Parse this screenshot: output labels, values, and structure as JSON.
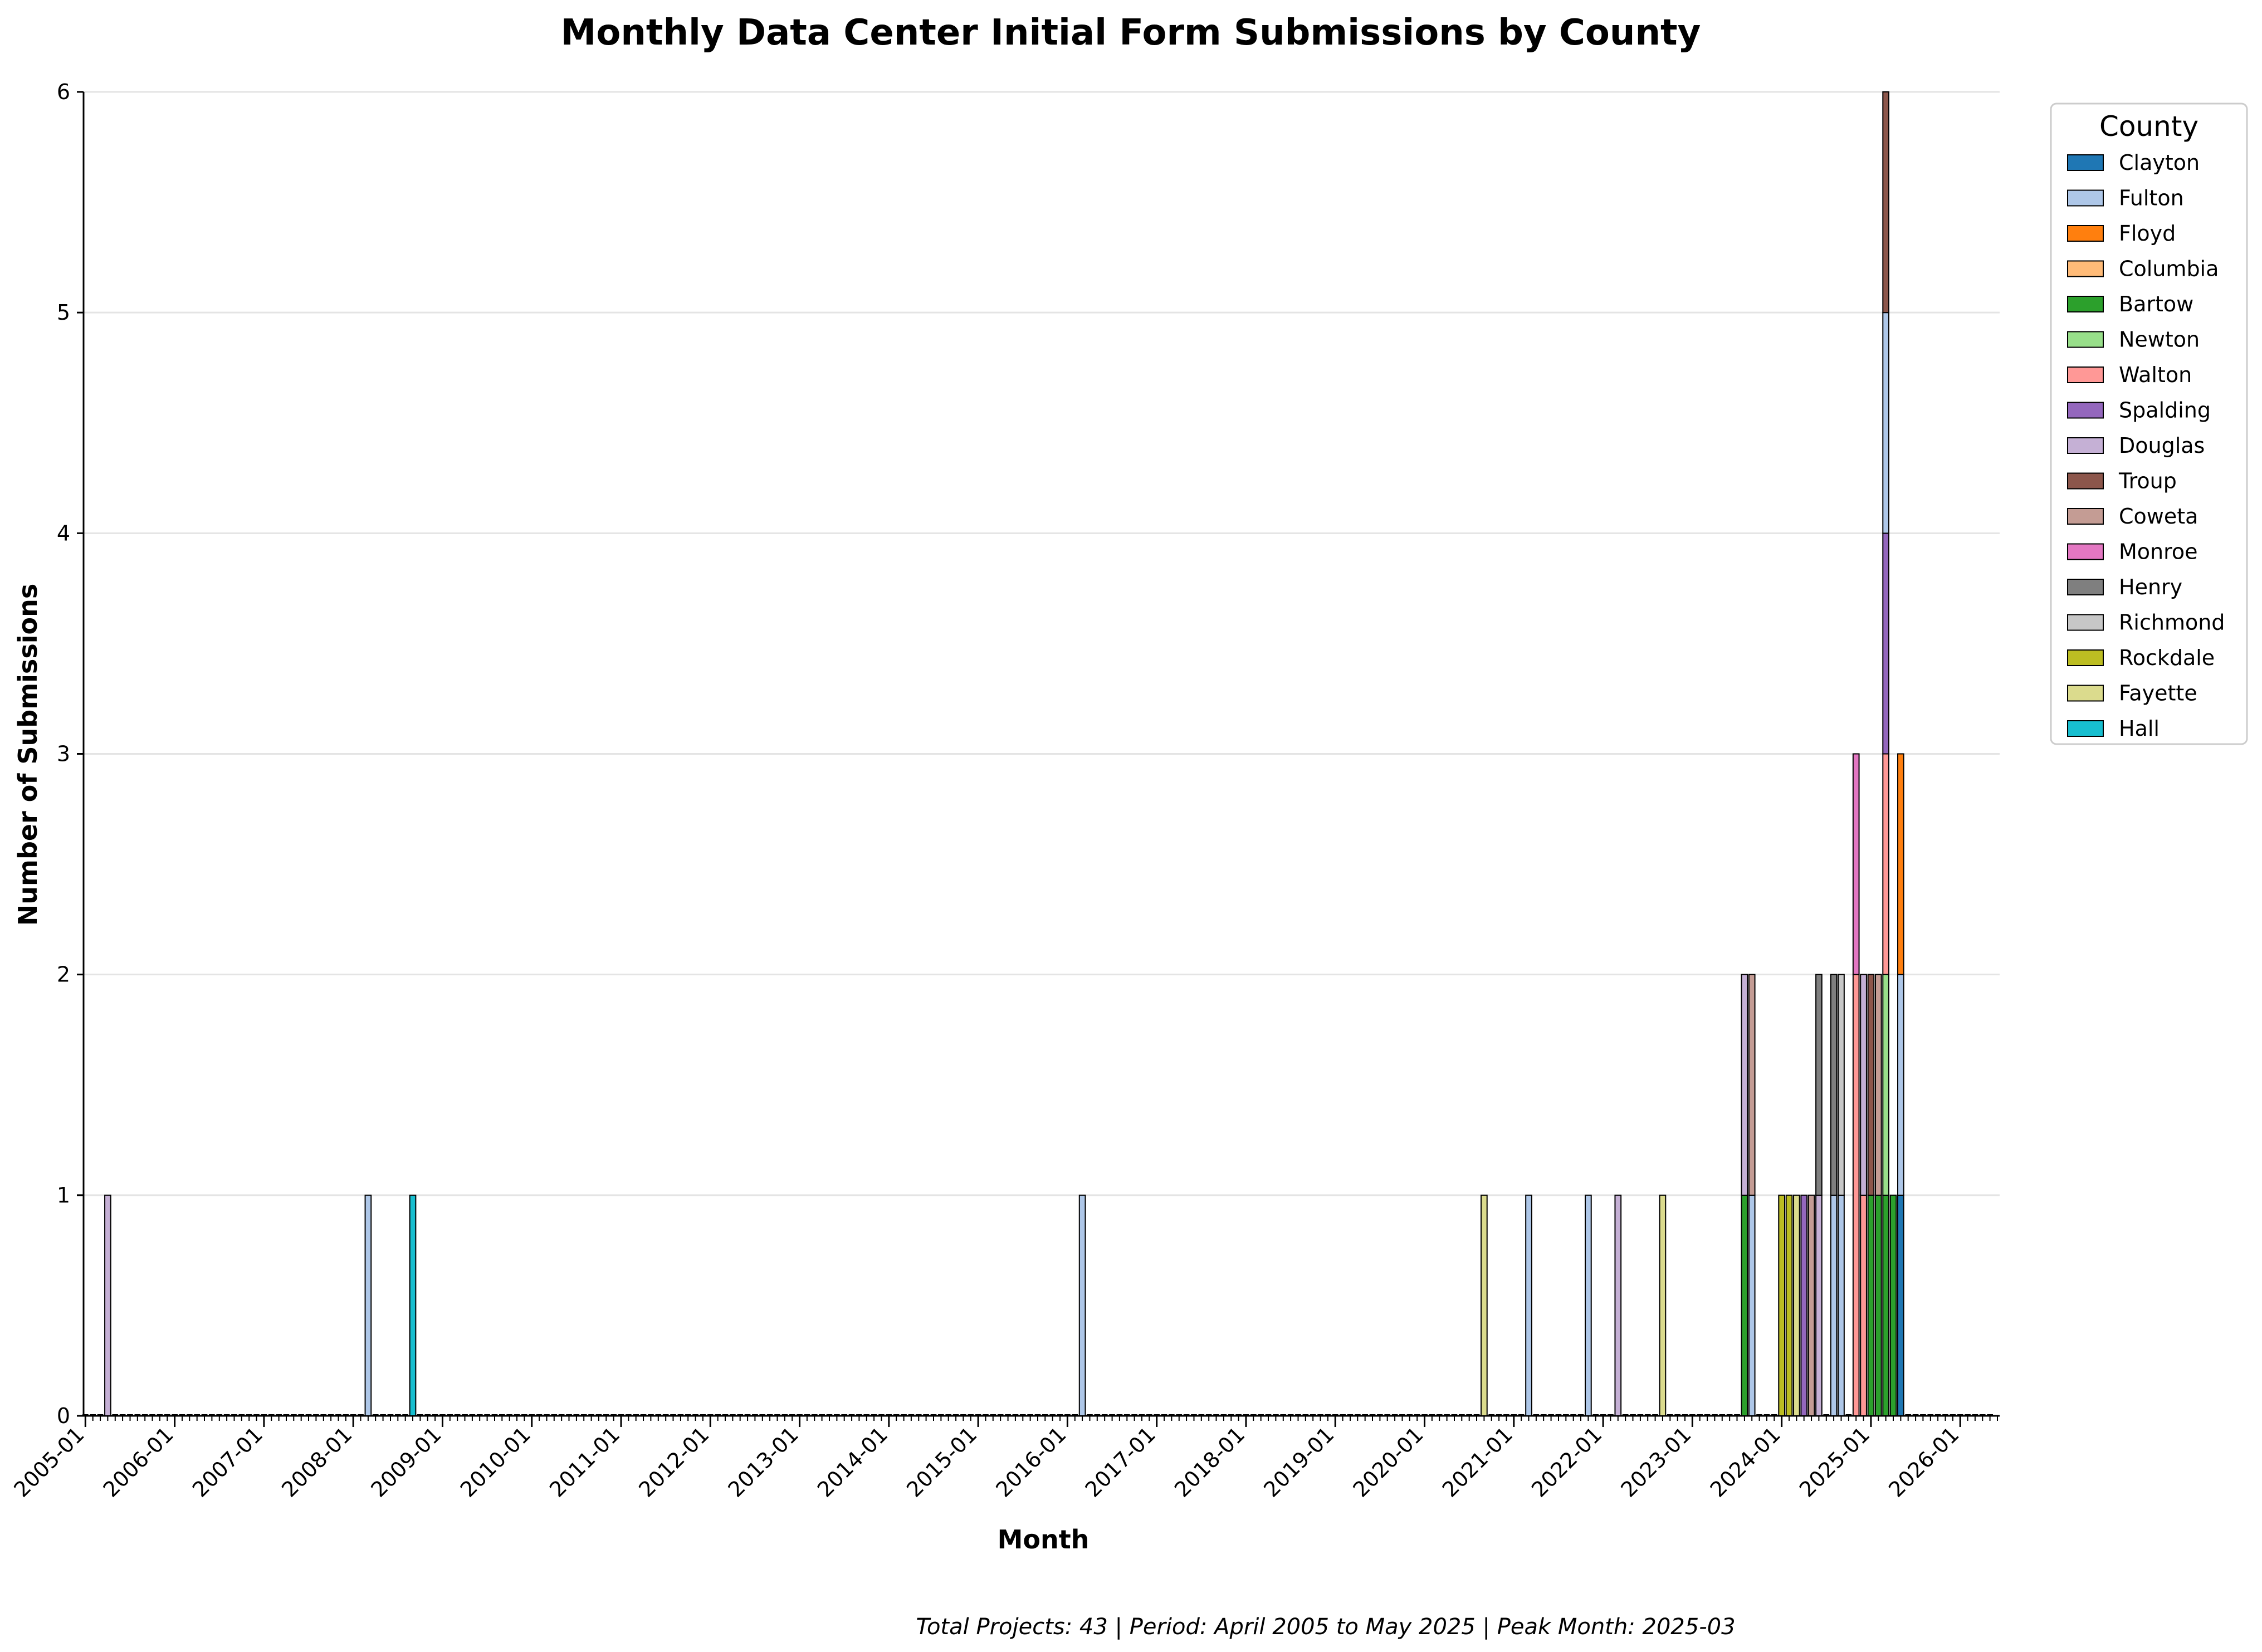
{
  "chart_data": {
    "type": "bar",
    "stacked": true,
    "title": "Monthly Data Center Initial Form Submissions by County",
    "xlabel": "Month",
    "ylabel": "Number of Submissions",
    "ylim": [
      0,
      6
    ],
    "yticks": [
      0,
      1,
      2,
      3,
      4,
      5,
      6
    ],
    "x_range": [
      "2005-01",
      "2026-06"
    ],
    "xtick_labels": [
      "2005-01",
      "2006-01",
      "2007-01",
      "2008-01",
      "2009-01",
      "2010-01",
      "2011-01",
      "2012-01",
      "2013-01",
      "2014-01",
      "2015-01",
      "2016-01",
      "2017-01",
      "2018-01",
      "2019-01",
      "2020-01",
      "2021-01",
      "2022-01",
      "2023-01",
      "2024-01",
      "2025-01",
      "2026-01"
    ],
    "grid": "horizontal",
    "legend": {
      "title": "County",
      "placement": "right"
    },
    "series": [
      {
        "name": "Clayton",
        "color": "#1f77b4"
      },
      {
        "name": "Fulton",
        "color": "#aec7e8"
      },
      {
        "name": "Floyd",
        "color": "#ff7f0e"
      },
      {
        "name": "Columbia",
        "color": "#ffbb78"
      },
      {
        "name": "Bartow",
        "color": "#2ca02c"
      },
      {
        "name": "Newton",
        "color": "#98df8a"
      },
      {
        "name": "Walton",
        "color": "#ff9896"
      },
      {
        "name": "Spalding",
        "color": "#9467bd"
      },
      {
        "name": "Douglas",
        "color": "#c5b0d5"
      },
      {
        "name": "Troup",
        "color": "#8c564b"
      },
      {
        "name": "Coweta",
        "color": "#c49c94"
      },
      {
        "name": "Monroe",
        "color": "#e377c2"
      },
      {
        "name": "Henry",
        "color": "#7f7f7f"
      },
      {
        "name": "Richmond",
        "color": "#c7c7c7"
      },
      {
        "name": "Rockdale",
        "color": "#bcbd22"
      },
      {
        "name": "Fayette",
        "color": "#dbdb8d"
      },
      {
        "name": "Hall",
        "color": "#17becf"
      }
    ],
    "bars": [
      {
        "month": "2005-04",
        "stack": [
          [
            "Douglas",
            1
          ]
        ]
      },
      {
        "month": "2008-03",
        "stack": [
          [
            "Fulton",
            1
          ]
        ]
      },
      {
        "month": "2008-09",
        "stack": [
          [
            "Hall",
            1
          ]
        ]
      },
      {
        "month": "2016-03",
        "stack": [
          [
            "Fulton",
            1
          ]
        ]
      },
      {
        "month": "2020-09",
        "stack": [
          [
            "Fayette",
            1
          ]
        ]
      },
      {
        "month": "2021-03",
        "stack": [
          [
            "Fulton",
            1
          ]
        ]
      },
      {
        "month": "2021-11",
        "stack": [
          [
            "Fulton",
            1
          ]
        ]
      },
      {
        "month": "2022-03",
        "stack": [
          [
            "Douglas",
            1
          ]
        ]
      },
      {
        "month": "2022-09",
        "stack": [
          [
            "Fayette",
            1
          ]
        ]
      },
      {
        "month": "2023-08",
        "stack": [
          [
            "Bartow",
            1
          ],
          [
            "Douglas",
            1
          ]
        ]
      },
      {
        "month": "2023-09",
        "stack": [
          [
            "Fulton",
            1
          ],
          [
            "Coweta",
            1
          ]
        ]
      },
      {
        "month": "2024-01",
        "stack": [
          [
            "Rockdale",
            1
          ]
        ]
      },
      {
        "month": "2024-02",
        "stack": [
          [
            "Rockdale",
            1
          ]
        ]
      },
      {
        "month": "2024-03",
        "stack": [
          [
            "Fayette",
            1
          ]
        ]
      },
      {
        "month": "2024-04",
        "stack": [
          [
            "Spalding",
            1
          ]
        ]
      },
      {
        "month": "2024-05",
        "stack": [
          [
            "Coweta",
            1
          ]
        ]
      },
      {
        "month": "2024-06",
        "stack": [
          [
            "Douglas",
            1
          ],
          [
            "Henry",
            1
          ]
        ]
      },
      {
        "month": "2024-08",
        "stack": [
          [
            "Fulton",
            1
          ],
          [
            "Henry",
            1
          ]
        ]
      },
      {
        "month": "2024-09",
        "stack": [
          [
            "Fulton",
            1
          ],
          [
            "Richmond",
            1
          ]
        ]
      },
      {
        "month": "2024-11",
        "stack": [
          [
            "Walton",
            2
          ],
          [
            "Monroe",
            1
          ]
        ]
      },
      {
        "month": "2024-12",
        "stack": [
          [
            "Walton",
            1
          ],
          [
            "Douglas",
            1
          ]
        ]
      },
      {
        "month": "2025-01",
        "stack": [
          [
            "Bartow",
            1
          ],
          [
            "Troup",
            1
          ]
        ]
      },
      {
        "month": "2025-02",
        "stack": [
          [
            "Bartow",
            1
          ],
          [
            "Coweta",
            1
          ]
        ]
      },
      {
        "month": "2025-03",
        "stack": [
          [
            "Bartow",
            1
          ],
          [
            "Newton",
            1
          ],
          [
            "Walton",
            1
          ],
          [
            "Spalding",
            1
          ],
          [
            "Fulton",
            1
          ],
          [
            "Troup",
            1
          ]
        ]
      },
      {
        "month": "2025-04",
        "stack": [
          [
            "Bartow",
            1
          ]
        ]
      },
      {
        "month": "2025-05",
        "stack": [
          [
            "Clayton",
            1
          ],
          [
            "Fulton",
            1
          ],
          [
            "Floyd",
            1
          ]
        ]
      }
    ],
    "footer": "Total Projects: 43 | Period: April 2005 to May 2025 | Peak Month: 2025-03"
  }
}
